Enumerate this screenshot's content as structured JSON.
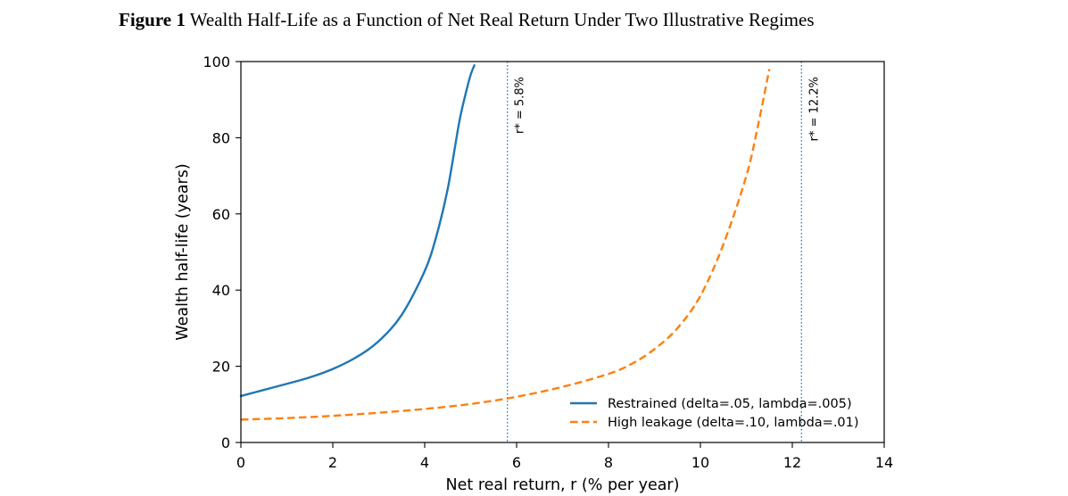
{
  "figure": {
    "label": "Figure 1",
    "title": "Wealth Half-Life as a Function of Net Real Return Under Two Illustrative Regimes"
  },
  "chart_data": {
    "type": "line",
    "xlabel": "Net real return, r (% per year)",
    "ylabel": "Wealth half-life (years)",
    "xlim": [
      0,
      14
    ],
    "ylim": [
      0,
      100
    ],
    "xticks": [
      0,
      2,
      4,
      6,
      8,
      10,
      12,
      14
    ],
    "yticks": [
      0,
      20,
      40,
      60,
      80,
      100
    ],
    "grid": false,
    "legend_position": "lower-right",
    "series": [
      {
        "name": "Restrained (delta=.05, lambda=.005)",
        "color": "#1f77b4",
        "style": "solid",
        "x": [
          0,
          0.5,
          1,
          1.5,
          2,
          2.5,
          3,
          3.5,
          4,
          4.25,
          4.5,
          4.75,
          4.9,
          5.0,
          5.08
        ],
        "y": [
          12.2,
          13.8,
          15.4,
          17.1,
          19.3,
          22.3,
          26.6,
          33.5,
          45.0,
          54.0,
          66.5,
          84.0,
          92.0,
          96.5,
          99.0
        ]
      },
      {
        "name": "High leakage (delta=.10, lambda=.01)",
        "color": "#ff7f0e",
        "style": "dashed",
        "x": [
          0,
          1,
          2,
          3,
          4,
          5,
          6,
          7,
          8,
          8.5,
          9,
          9.5,
          10,
          10.5,
          11,
          11.25,
          11.5
        ],
        "y": [
          6.0,
          6.4,
          7.0,
          7.8,
          8.8,
          10.1,
          12.0,
          14.6,
          18.0,
          20.6,
          24.5,
          30.0,
          38.5,
          52.0,
          70.0,
          83.0,
          98.0
        ]
      }
    ],
    "vlines": [
      {
        "x": 5.8,
        "label": "r* = 5.8%",
        "color": "#1f77b4"
      },
      {
        "x": 12.2,
        "label": "r* = 12.2%",
        "color": "#1f77b4"
      }
    ]
  }
}
